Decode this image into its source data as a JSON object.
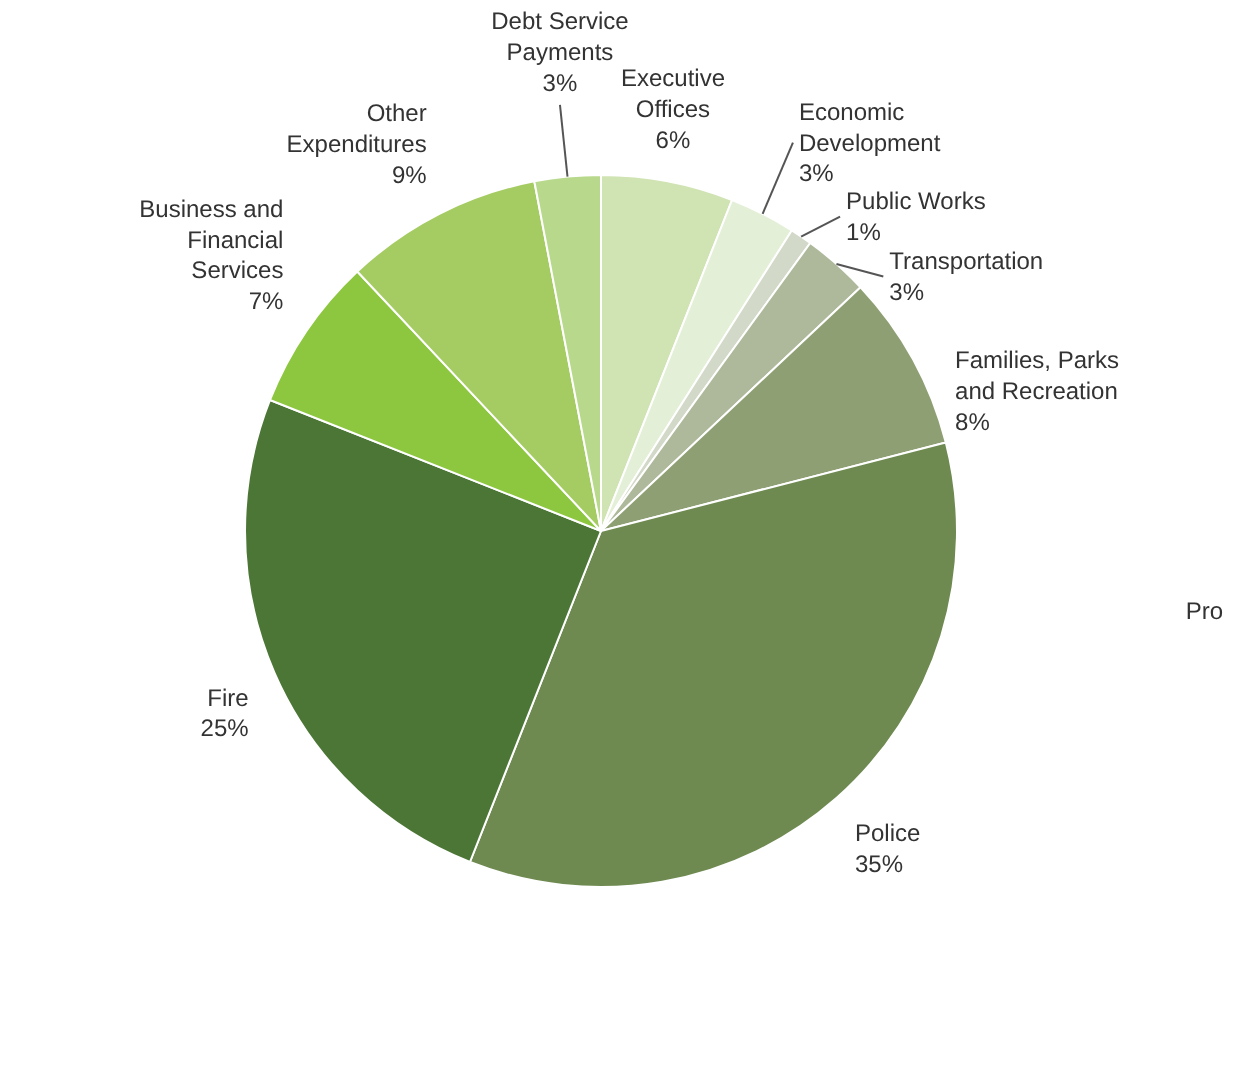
{
  "chart_data": {
    "type": "pie",
    "categories": [
      "Executive Offices",
      "Economic Development",
      "Public Works",
      "Transportation",
      "Families, Parks and Recreation",
      "Police",
      "Fire",
      "Business and Financial Services",
      "Other Expenditures",
      "Debt Service Payments"
    ],
    "values": [
      6,
      3,
      1,
      3,
      8,
      35,
      25,
      7,
      9,
      3
    ],
    "colors": [
      "#d0e3b3",
      "#e3efd6",
      "#d2d9c8",
      "#adb99a",
      "#8ea073",
      "#6e8a51",
      "#4c7636",
      "#8dc63f",
      "#a5cc63",
      "#b8d98c"
    ],
    "value_labels": [
      "6%",
      "3%",
      "1%",
      "3%",
      "8%",
      "35%",
      "25%",
      "7%",
      "9%",
      "3%"
    ],
    "data_labels": true,
    "annotations": [
      "Pro"
    ]
  }
}
